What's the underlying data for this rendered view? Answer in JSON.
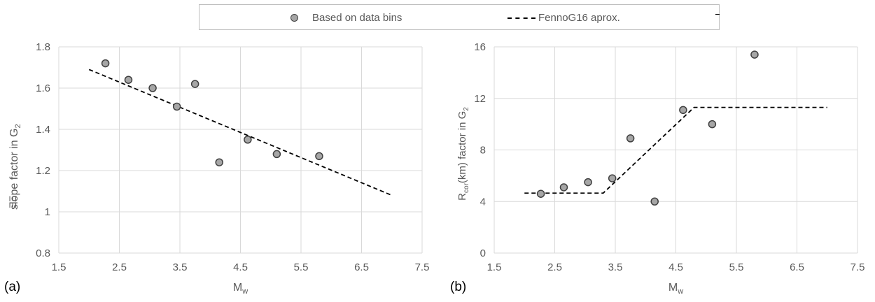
{
  "legend": {
    "items": [
      {
        "label": "Based on data bins",
        "kind": "marker"
      },
      {
        "label": "FennoG16 aprox.",
        "kind": "dashed-line"
      }
    ]
  },
  "panels": [
    {
      "label": "(a)"
    },
    {
      "label": "(b)"
    }
  ],
  "colors": {
    "marker_fill": "#a6a6a6",
    "marker_stroke": "#404040",
    "grid": "#d9d9d9",
    "line": "#000000",
    "text": "#595959"
  },
  "chart_data": [
    {
      "type": "scatter",
      "xlabel": "M",
      "xlabel_sub": "w",
      "ylabel": "slope factor in G",
      "ylabel_sub": "2",
      "ylabel_overlay": "ΞΞ",
      "xlim": [
        1.5,
        7.5
      ],
      "ylim": [
        0.8,
        1.8
      ],
      "xticks": [
        "1.5",
        "2.5",
        "3.5",
        "4.5",
        "5.5",
        "6.5",
        "7.5"
      ],
      "yticks": [
        "0.8",
        "1",
        "1.2",
        "1.4",
        "1.6",
        "1.8"
      ],
      "grid": true,
      "series": [
        {
          "name": "Based on data bins",
          "kind": "scatter",
          "x": [
            2.27,
            2.65,
            3.05,
            3.45,
            3.75,
            4.15,
            4.62,
            5.1,
            5.8
          ],
          "y": [
            1.72,
            1.64,
            1.6,
            1.51,
            1.62,
            1.24,
            1.35,
            1.28,
            1.27
          ]
        },
        {
          "name": "FennoG16 aprox.",
          "kind": "dashed-line",
          "x": [
            2.0,
            7.0
          ],
          "y": [
            1.69,
            1.08
          ]
        }
      ]
    },
    {
      "type": "scatter",
      "xlabel": "M",
      "xlabel_sub": "w",
      "ylabel": "R",
      "ylabel_sub": "cor",
      "ylabel_tail": "(km) factor in G",
      "ylabel_tail_sub": "2",
      "xlim": [
        1.5,
        7.5
      ],
      "ylim": [
        0,
        16
      ],
      "xticks": [
        "1.5",
        "2.5",
        "3.5",
        "4.5",
        "5.5",
        "6.5",
        "7.5"
      ],
      "yticks": [
        "0",
        "4",
        "8",
        "12",
        "16"
      ],
      "grid": true,
      "series": [
        {
          "name": "Based on data bins",
          "kind": "scatter",
          "x": [
            2.27,
            2.65,
            3.05,
            3.45,
            3.75,
            4.15,
            4.62,
            5.1,
            5.8
          ],
          "y": [
            4.6,
            5.1,
            5.5,
            5.8,
            8.9,
            4.0,
            11.1,
            10.0,
            15.4
          ]
        },
        {
          "name": "FennoG16 aprox.",
          "kind": "dashed-line",
          "x": [
            2.0,
            3.3,
            4.8,
            7.0
          ],
          "y": [
            4.65,
            4.65,
            11.3,
            11.3
          ]
        }
      ]
    }
  ]
}
